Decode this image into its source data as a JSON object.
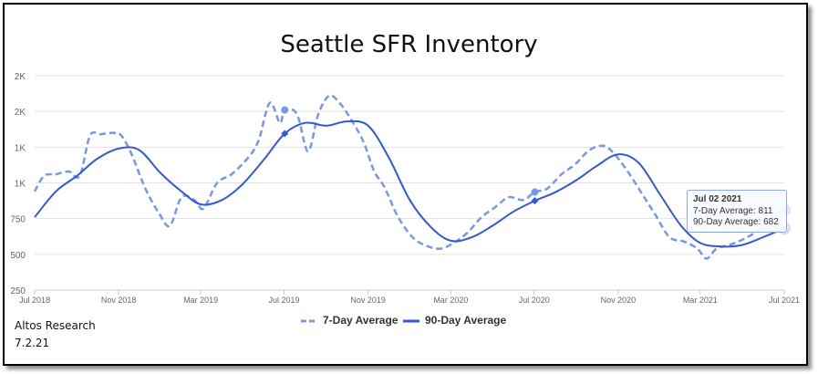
{
  "chart_data": {
    "type": "line",
    "title": "Seattle SFR Inventory",
    "xlabel": "",
    "ylabel": "",
    "x_ticks": [
      "Jul 2018",
      "Nov 2018",
      "Mar 2019",
      "Jul 2019",
      "Nov 2019",
      "Mar 2020",
      "Jul 2020",
      "Nov 2020",
      "Mar 2021",
      "Jul 2021"
    ],
    "y_ticks": [
      "250",
      "500",
      "750",
      "1K",
      "1K",
      "2K",
      "2K"
    ],
    "y_tick_values": [
      250,
      500,
      750,
      1000,
      1250,
      1500,
      1750
    ],
    "ylim": [
      250,
      1750
    ],
    "grid": true,
    "legend_position": "bottom-center",
    "series": [
      {
        "name": "7-Day Average",
        "style": "dashed",
        "color": "#7a97e6",
        "points": [
          [
            "2018-07-01",
            940
          ],
          [
            "2018-07-15",
            1050
          ],
          [
            "2018-08-01",
            1060
          ],
          [
            "2018-08-20",
            1080
          ],
          [
            "2018-09-05",
            1050
          ],
          [
            "2018-09-20",
            1330
          ],
          [
            "2018-10-05",
            1340
          ],
          [
            "2018-10-25",
            1350
          ],
          [
            "2018-11-05",
            1330
          ],
          [
            "2018-11-20",
            1200
          ],
          [
            "2018-12-10",
            960
          ],
          [
            "2018-12-31",
            780
          ],
          [
            "2019-01-15",
            700
          ],
          [
            "2019-02-01",
            900
          ],
          [
            "2019-02-20",
            880
          ],
          [
            "2019-03-05",
            820
          ],
          [
            "2019-03-25",
            1000
          ],
          [
            "2019-04-15",
            1060
          ],
          [
            "2019-05-10",
            1180
          ],
          [
            "2019-05-25",
            1300
          ],
          [
            "2019-06-10",
            1560
          ],
          [
            "2019-06-25",
            1420
          ],
          [
            "2019-07-02",
            1510
          ],
          [
            "2019-07-20",
            1480
          ],
          [
            "2019-08-05",
            1220
          ],
          [
            "2019-08-20",
            1480
          ],
          [
            "2019-09-05",
            1610
          ],
          [
            "2019-09-20",
            1560
          ],
          [
            "2019-10-05",
            1460
          ],
          [
            "2019-10-25",
            1290
          ],
          [
            "2019-11-10",
            1080
          ],
          [
            "2019-11-25",
            970
          ],
          [
            "2019-12-15",
            760
          ],
          [
            "2020-01-05",
            620
          ],
          [
            "2020-01-25",
            560
          ],
          [
            "2020-02-15",
            540
          ],
          [
            "2020-03-05",
            580
          ],
          [
            "2020-03-25",
            650
          ],
          [
            "2020-04-15",
            760
          ],
          [
            "2020-05-05",
            830
          ],
          [
            "2020-05-25",
            900
          ],
          [
            "2020-06-15",
            880
          ],
          [
            "2020-07-02",
            936
          ],
          [
            "2020-07-20",
            960
          ],
          [
            "2020-08-10",
            1060
          ],
          [
            "2020-08-30",
            1130
          ],
          [
            "2020-09-20",
            1230
          ],
          [
            "2020-10-10",
            1260
          ],
          [
            "2020-10-25",
            1210
          ],
          [
            "2020-11-15",
            1080
          ],
          [
            "2020-12-05",
            930
          ],
          [
            "2020-12-25",
            780
          ],
          [
            "2021-01-15",
            620
          ],
          [
            "2021-02-05",
            590
          ],
          [
            "2021-02-25",
            540
          ],
          [
            "2021-03-10",
            470
          ],
          [
            "2021-03-25",
            540
          ],
          [
            "2021-04-15",
            570
          ],
          [
            "2021-05-05",
            610
          ],
          [
            "2021-05-25",
            670
          ],
          [
            "2021-06-15",
            770
          ],
          [
            "2021-07-02",
            811
          ]
        ]
      },
      {
        "name": "90-Day Average",
        "style": "solid",
        "color": "#3358d8",
        "points": [
          [
            "2018-07-01",
            760
          ],
          [
            "2018-08-01",
            940
          ],
          [
            "2018-09-01",
            1050
          ],
          [
            "2018-10-01",
            1170
          ],
          [
            "2018-11-01",
            1240
          ],
          [
            "2018-12-01",
            1230
          ],
          [
            "2019-01-01",
            1070
          ],
          [
            "2019-02-01",
            940
          ],
          [
            "2019-03-01",
            850
          ],
          [
            "2019-04-01",
            880
          ],
          [
            "2019-05-01",
            990
          ],
          [
            "2019-06-01",
            1160
          ],
          [
            "2019-07-02",
            1345
          ],
          [
            "2019-08-01",
            1420
          ],
          [
            "2019-09-01",
            1400
          ],
          [
            "2019-10-01",
            1430
          ],
          [
            "2019-11-01",
            1400
          ],
          [
            "2019-12-01",
            1180
          ],
          [
            "2020-01-01",
            880
          ],
          [
            "2020-02-01",
            690
          ],
          [
            "2020-03-01",
            595
          ],
          [
            "2020-04-01",
            620
          ],
          [
            "2020-05-01",
            700
          ],
          [
            "2020-06-01",
            800
          ],
          [
            "2020-07-02",
            875
          ],
          [
            "2020-08-01",
            935
          ],
          [
            "2020-09-01",
            1020
          ],
          [
            "2020-10-01",
            1120
          ],
          [
            "2020-11-01",
            1200
          ],
          [
            "2020-12-01",
            1140
          ],
          [
            "2021-01-01",
            920
          ],
          [
            "2021-02-01",
            700
          ],
          [
            "2021-03-01",
            580
          ],
          [
            "2021-04-01",
            555
          ],
          [
            "2021-05-01",
            565
          ],
          [
            "2021-06-01",
            620
          ],
          [
            "2021-07-02",
            682
          ]
        ]
      }
    ],
    "highlighted_points": [
      {
        "x": "2019-07-02",
        "y7": 1510,
        "y90": 1345
      },
      {
        "x": "2020-07-02",
        "y7": 936,
        "y90": 875
      },
      {
        "x": "2021-07-02",
        "y7": 811,
        "y90": 682
      }
    ],
    "tooltip": {
      "date": "Jul 02 2021",
      "line1": "7-Day Average: 811",
      "line2": "90-Day Average: 682"
    },
    "legend": [
      "7-Day Average",
      "90-Day Average"
    ]
  },
  "credit": {
    "line1": "Altos Research",
    "line2": "7.2.21"
  }
}
